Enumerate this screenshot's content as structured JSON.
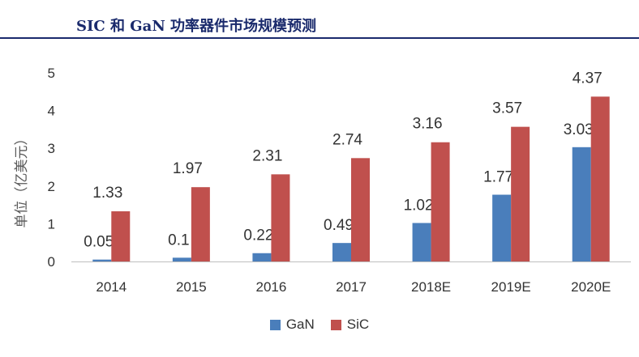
{
  "title": "SIC 和 GaN 功率器件市场规模预测",
  "chart_data": {
    "type": "bar",
    "title": "SIC 和 GaN 功率器件市场规模预测",
    "ylabel": "单位（亿美元）",
    "xlabel": "",
    "categories": [
      "2014",
      "2015",
      "2016",
      "2017",
      "2018E",
      "2019E",
      "2020E"
    ],
    "series": [
      {
        "name": "GaN",
        "values": [
          0.05,
          0.1,
          0.22,
          0.49,
          1.02,
          1.77,
          3.03
        ],
        "color": "#4a7ebb"
      },
      {
        "name": "SiC",
        "values": [
          1.33,
          1.97,
          2.31,
          2.74,
          3.16,
          3.57,
          4.37
        ],
        "color": "#c0504d"
      }
    ],
    "ylim": [
      0,
      5
    ],
    "yticks": [
      0,
      1,
      2,
      3,
      4,
      5
    ],
    "grid": false,
    "legend": "bottom-center"
  }
}
